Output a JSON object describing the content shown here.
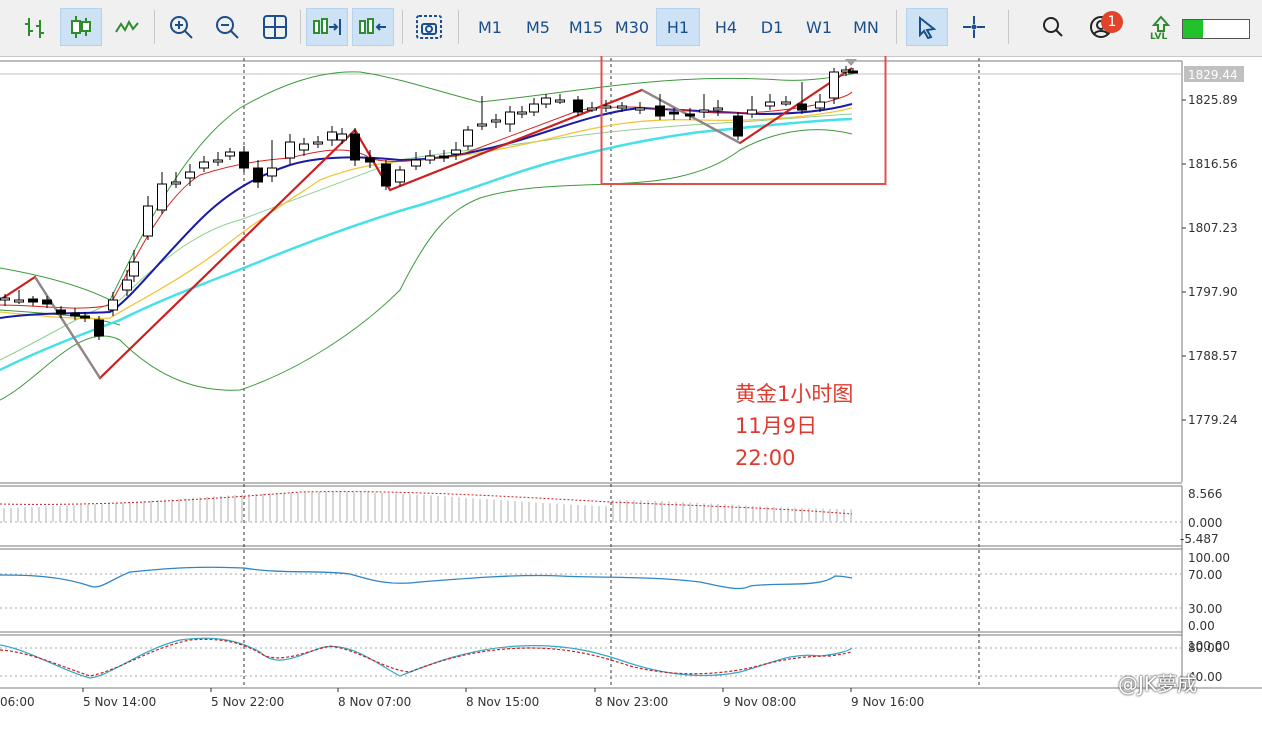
{
  "toolbar": {
    "timeframes": [
      "M1",
      "M5",
      "M15",
      "M30",
      "H1",
      "H4",
      "D1",
      "W1",
      "MN"
    ],
    "active_timeframe": "H1",
    "notification_count": "1",
    "level_label": "LVL",
    "level_progress": 0.3
  },
  "price_axis": {
    "current_price": "1829.44",
    "ticks": [
      "1825.89",
      "1816.56",
      "1807.23",
      "1797.90",
      "1788.57",
      "1779.24"
    ]
  },
  "indicator_axes": {
    "macd": [
      "8.566",
      "0.000",
      "-5.487"
    ],
    "rsi": [
      "100.00",
      "70.00",
      "30.00",
      "0.00"
    ],
    "stoch": [
      "100.00",
      "80.00",
      "40.00"
    ]
  },
  "time_axis": [
    "06:00",
    "5 Nov 14:00",
    "5 Nov 22:00",
    "8 Nov 07:00",
    "8 Nov 15:00",
    "8 Nov 23:00",
    "9 Nov 08:00",
    "9 Nov 16:00"
  ],
  "annotation": {
    "line1": "黄金1小时图",
    "line2": "11月9日",
    "line3": "22:00"
  },
  "watermark": "@JK夢成",
  "colors": {
    "bullish": "#ffffff",
    "bearish": "#000000",
    "ma_red": "#d42424",
    "ma_blue": "#1a1aa8",
    "ma_yellow": "#f2c53d",
    "ma_cyan": "#45e0e8",
    "bollinger": "#3c9a3c",
    "zigzag_red": "#cc1f1f",
    "zigzag_gray": "#8a8a8a",
    "highlight_box": "#e05050",
    "annotation": "#e03a2f"
  },
  "icons": [
    "chart-bars-icon",
    "candles-icon",
    "line-chart-icon",
    "zoom-in-icon",
    "zoom-out-icon",
    "grid-icon",
    "autoscroll-icon",
    "chart-shift-icon",
    "screenshot-icon",
    "cursor-icon",
    "crosshair-icon",
    "search-icon",
    "account-icon",
    "level-up-icon"
  ]
}
